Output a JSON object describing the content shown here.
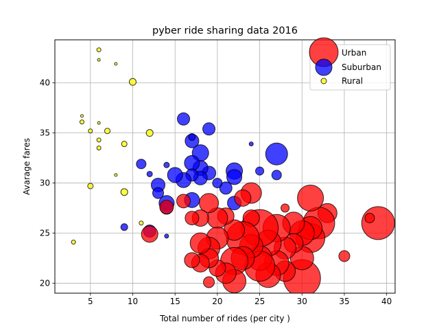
{
  "chart_data": {
    "type": "scatter",
    "title": "pyber ride sharing data 2016",
    "xlabel": "Total number of rides (per city )",
    "ylabel": "Avarage fares",
    "xlim": [
      0.8,
      41
    ],
    "ylim": [
      19,
      44.3
    ],
    "xticks": [
      5,
      10,
      15,
      20,
      25,
      30,
      35,
      40
    ],
    "yticks": [
      20,
      25,
      30,
      35,
      40
    ],
    "grid": true,
    "legend_position": "top-right",
    "series": [
      {
        "name": "Urban",
        "color": "#ff0000",
        "points": [
          [
            39,
            26,
            24
          ],
          [
            38,
            26.5,
            7
          ],
          [
            35,
            22.7,
            8
          ],
          [
            33,
            27,
            14
          ],
          [
            32,
            26,
            23
          ],
          [
            31,
            28.5,
            19
          ],
          [
            31,
            24.5,
            21
          ],
          [
            31,
            25.5,
            17
          ],
          [
            30,
            20.5,
            27
          ],
          [
            30,
            22.5,
            17
          ],
          [
            30,
            25,
            18
          ],
          [
            29,
            26,
            16
          ],
          [
            29,
            24,
            14
          ],
          [
            28,
            27.5,
            6
          ],
          [
            28,
            21.2,
            15
          ],
          [
            28,
            23.5,
            16
          ],
          [
            27,
            22,
            18
          ],
          [
            27,
            25.5,
            20
          ],
          [
            26,
            24,
            19
          ],
          [
            26,
            20.8,
            18
          ],
          [
            25,
            25.5,
            27
          ],
          [
            25,
            22.5,
            18
          ],
          [
            25,
            21.7,
            22
          ],
          [
            24,
            29,
            15
          ],
          [
            24,
            23.7,
            17
          ],
          [
            24,
            26.5,
            12
          ],
          [
            23,
            28.5,
            12
          ],
          [
            23,
            24.5,
            24
          ],
          [
            23,
            22.5,
            17
          ],
          [
            22,
            22.2,
            20
          ],
          [
            22,
            20.2,
            17
          ],
          [
            22,
            25.3,
            15
          ],
          [
            21,
            21,
            15
          ],
          [
            21,
            26.7,
            12
          ],
          [
            20,
            26.5,
            15
          ],
          [
            20,
            24.5,
            16
          ],
          [
            20,
            21.5,
            12
          ],
          [
            19,
            28,
            14
          ],
          [
            19,
            23.5,
            16
          ],
          [
            19,
            22.5,
            14
          ],
          [
            19,
            20.1,
            8
          ],
          [
            18,
            24,
            15
          ],
          [
            18,
            26.5,
            12
          ],
          [
            18,
            22,
            13
          ],
          [
            17,
            26.5,
            10
          ],
          [
            17,
            22.3,
            11
          ],
          [
            16,
            28.2,
            10
          ],
          [
            14,
            27.6,
            10
          ],
          [
            12,
            24.9,
            12
          ]
        ]
      },
      {
        "name": "Suburban",
        "color": "#0000ff",
        "points": [
          [
            27,
            32.9,
            16
          ],
          [
            27,
            30.8,
            7
          ],
          [
            25,
            31.2,
            6
          ],
          [
            24,
            33.9,
            3
          ],
          [
            22,
            31.2,
            12
          ],
          [
            22,
            30.6,
            11
          ],
          [
            22,
            28,
            10
          ],
          [
            21,
            29.5,
            9
          ],
          [
            20,
            30,
            7
          ],
          [
            19,
            35.4,
            9
          ],
          [
            19,
            31,
            10
          ],
          [
            18,
            33,
            12
          ],
          [
            18,
            31.5,
            11
          ],
          [
            18,
            30.5,
            10
          ],
          [
            17,
            34.2,
            10
          ],
          [
            17,
            32,
            11
          ],
          [
            17,
            30.8,
            9
          ],
          [
            17,
            28.3,
            11
          ],
          [
            17,
            34.6,
            5
          ],
          [
            16,
            36.4,
            9
          ],
          [
            16,
            30.3,
            11
          ],
          [
            15,
            30.8,
            11
          ],
          [
            14,
            28,
            11
          ],
          [
            14,
            27.5,
            9
          ],
          [
            14,
            31.8,
            4
          ],
          [
            14,
            24.7,
            3
          ],
          [
            13,
            29.8,
            10
          ],
          [
            13,
            29,
            8
          ],
          [
            12,
            25.2,
            9
          ],
          [
            12,
            30.9,
            4
          ],
          [
            11,
            31.9,
            7
          ],
          [
            9,
            25.6,
            5
          ]
        ]
      },
      {
        "name": "Rural",
        "color": "#ffff00",
        "points": [
          [
            6,
            43.3,
            3
          ],
          [
            6,
            42.3,
            2
          ],
          [
            8,
            41.9,
            2
          ],
          [
            10,
            40.1,
            5
          ],
          [
            4,
            36.7,
            2
          ],
          [
            4,
            36.1,
            3
          ],
          [
            6,
            36,
            2
          ],
          [
            5,
            35.2,
            3
          ],
          [
            7,
            35.2,
            4
          ],
          [
            12,
            35,
            5
          ],
          [
            6,
            34.3,
            3
          ],
          [
            6,
            33.5,
            3
          ],
          [
            9,
            33.9,
            4
          ],
          [
            8,
            30.8,
            2
          ],
          [
            5,
            29.7,
            4
          ],
          [
            9,
            29.1,
            5
          ],
          [
            11,
            26,
            3
          ],
          [
            3,
            24.1,
            3
          ]
        ]
      }
    ]
  }
}
